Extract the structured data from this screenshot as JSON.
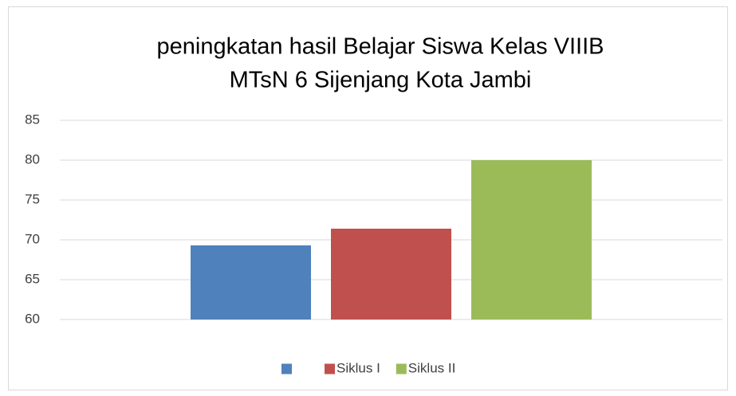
{
  "chart_data": {
    "type": "bar",
    "title": [
      "peningkatan hasil Belajar Siswa Kelas VIIIB",
      "MTsN 6 Sijenjang Kota Jambi"
    ],
    "categories": [
      null
    ],
    "series": [
      {
        "name": null,
        "color": "#4f81bd",
        "values": [
          69.3
        ]
      },
      {
        "name": "Siklus I",
        "color": "#c0504d",
        "values": [
          71.4
        ]
      },
      {
        "name": "Siklus II",
        "color": "#9bbb59",
        "values": [
          80
        ]
      }
    ],
    "ylim": [
      60,
      85
    ],
    "yticks": [
      60,
      65,
      70,
      75,
      80,
      85
    ],
    "grid": true,
    "legend": "bottom"
  }
}
